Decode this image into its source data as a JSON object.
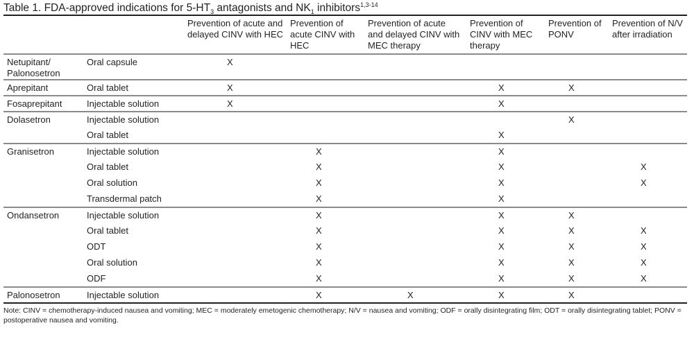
{
  "title": {
    "prefix": "Table 1. FDA-approved indications for 5-HT",
    "sub": "3",
    "mid": " antagonists and NK",
    "sub2": "1",
    "suffix": " inhibitors",
    "sup": "1,3-14"
  },
  "columns": [
    "",
    "",
    "Prevention of acute and delayed CINV with HEC",
    "Prevention of acute CINV with HEC",
    "Prevention of acute and delayed CINV with MEC therapy",
    "Prevention of CINV with MEC therapy",
    "Prevention of PONV",
    "Prevention of N/V after irradiation"
  ],
  "rows": [
    {
      "drug": "Netupitant/ Palonosetron",
      "form": "Oral capsule",
      "marks": [
        "X",
        "",
        "",
        "",
        "",
        ""
      ],
      "end": true
    },
    {
      "drug": "Aprepitant",
      "form": "Oral tablet",
      "marks": [
        "X",
        "",
        "",
        "X",
        "X",
        ""
      ],
      "end": true
    },
    {
      "drug": "Fosaprepitant",
      "form": "Injectable solution",
      "marks": [
        "X",
        "",
        "",
        "X",
        "",
        ""
      ],
      "end": true
    },
    {
      "drug": "Dolasetron",
      "form": "Injectable solution",
      "marks": [
        "",
        "",
        "",
        "",
        "X",
        ""
      ]
    },
    {
      "drug": "",
      "form": "Oral tablet",
      "marks": [
        "",
        "",
        "",
        "X",
        "",
        ""
      ],
      "end": true
    },
    {
      "drug": "Granisetron",
      "form": "Injectable solution",
      "marks": [
        "",
        "X",
        "",
        "X",
        "",
        ""
      ]
    },
    {
      "drug": "",
      "form": "Oral tablet",
      "marks": [
        "",
        "X",
        "",
        "X",
        "",
        "X"
      ]
    },
    {
      "drug": "",
      "form": "Oral solution",
      "marks": [
        "",
        "X",
        "",
        "X",
        "",
        "X"
      ]
    },
    {
      "drug": "",
      "form": "Transdermal patch",
      "marks": [
        "",
        "X",
        "",
        "X",
        "",
        ""
      ],
      "end": true
    },
    {
      "drug": "Ondansetron",
      "form": "Injectable solution",
      "marks": [
        "",
        "X",
        "",
        "X",
        "X",
        ""
      ]
    },
    {
      "drug": "",
      "form": "Oral tablet",
      "marks": [
        "",
        "X",
        "",
        "X",
        "X",
        "X"
      ]
    },
    {
      "drug": "",
      "form": "ODT",
      "marks": [
        "",
        "X",
        "",
        "X",
        "X",
        "X"
      ]
    },
    {
      "drug": "",
      "form": "Oral solution",
      "marks": [
        "",
        "X",
        "",
        "X",
        "X",
        "X"
      ]
    },
    {
      "drug": "",
      "form": "ODF",
      "marks": [
        "",
        "X",
        "",
        "X",
        "X",
        "X"
      ],
      "end": true
    },
    {
      "drug": "Palonosetron",
      "form": "Injectable solution",
      "marks": [
        "",
        "X",
        "X",
        "X",
        "X",
        ""
      ],
      "last": true
    }
  ],
  "note": "Note: CINV = chemotherapy-induced nausea and vomiting; MEC = moderately emetogenic chemotherapy; N/V = nausea and vomiting; ODF = orally disintegrating film; ODT = orally disintegrating tablet; PONV = postoperative nausea and vomiting."
}
